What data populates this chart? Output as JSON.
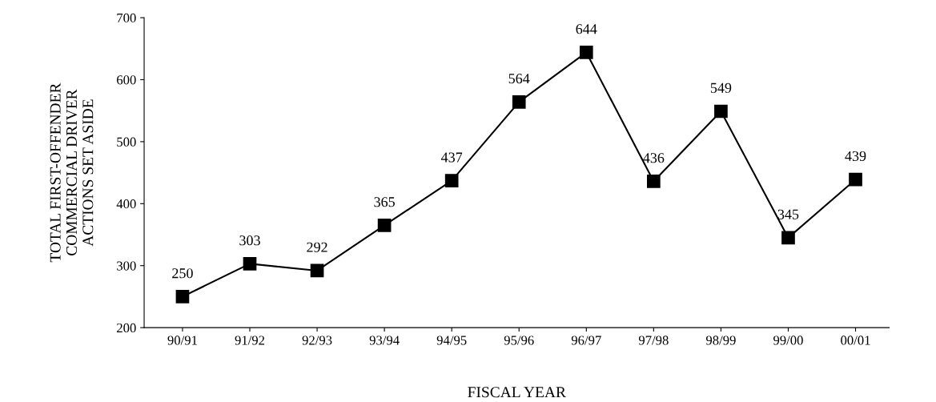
{
  "chart_data": {
    "type": "line",
    "xlabel": "FISCAL YEAR",
    "ylabel": "TOTAL FIRST-OFFENDER\nCOMMERCIAL DRIVER\nACTIONS SET ASIDE",
    "categories": [
      "90/91",
      "91/92",
      "92/93",
      "93/94",
      "94/95",
      "95/96",
      "96/97",
      "97/98",
      "98/99",
      "99/00",
      "00/01"
    ],
    "series": [
      {
        "color": "#000000",
        "values": [
          250,
          303,
          292,
          365,
          437,
          564,
          644,
          436,
          549,
          345,
          439
        ]
      }
    ],
    "ylim": [
      200,
      700
    ],
    "yticks": [
      200,
      300,
      400,
      500,
      600,
      700
    ],
    "marker": "square",
    "line_style": "solid",
    "grid": false,
    "legend": false,
    "data_labels": true
  }
}
